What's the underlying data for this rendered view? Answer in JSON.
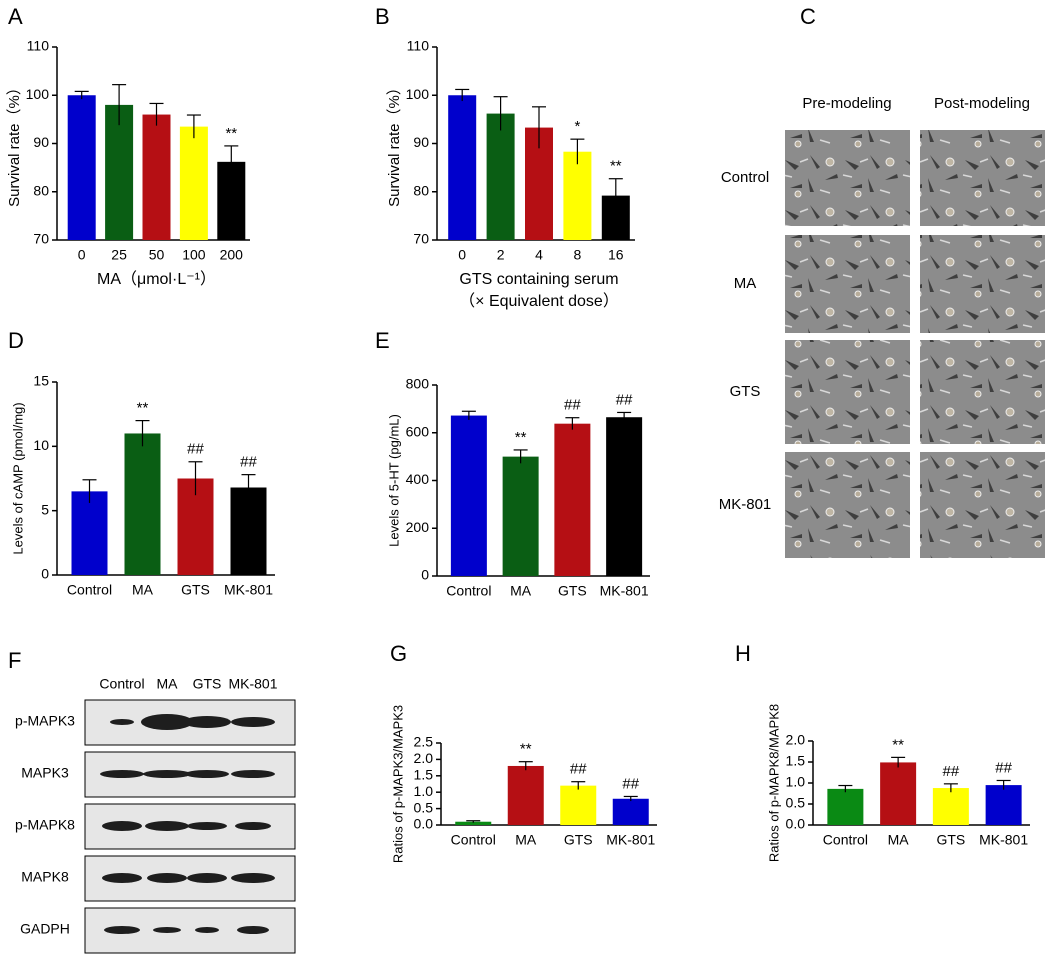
{
  "chart_data": [
    {
      "type": "bar",
      "panel_label": "A",
      "ylabel": "Survival rate（%）",
      "xlabel": [
        "MA（μmol·L⁻¹）"
      ],
      "categories": [
        "0",
        "25",
        "50",
        "100",
        "200"
      ],
      "values": [
        100,
        98,
        96,
        93.5,
        86.2
      ],
      "errors": [
        0.8,
        4.2,
        2.3,
        2.4,
        3.3
      ],
      "annotations": [
        null,
        null,
        null,
        null,
        "**"
      ],
      "colors": [
        "#0000cc",
        "#0a5e14",
        "#b50f14",
        "#ffff00",
        "#000000"
      ],
      "ylim": [
        70,
        110
      ],
      "yticks": [
        70,
        80,
        90,
        100,
        110
      ]
    },
    {
      "type": "bar",
      "panel_label": "B",
      "ylabel": "Survival rate（%）",
      "xlabel": [
        "GTS containing serum",
        "（× Equivalent dose）"
      ],
      "categories": [
        "0",
        "2",
        "4",
        "8",
        "16"
      ],
      "values": [
        100,
        96.2,
        93.3,
        88.3,
        79.2
      ],
      "errors": [
        1.2,
        3.5,
        4.3,
        2.6,
        3.5
      ],
      "annotations": [
        null,
        null,
        null,
        "*",
        "**"
      ],
      "colors": [
        "#0000cc",
        "#0a5e14",
        "#b50f14",
        "#ffff00",
        "#000000"
      ],
      "ylim": [
        70,
        110
      ],
      "yticks": [
        70,
        80,
        90,
        100,
        110
      ]
    },
    {
      "type": "bar",
      "panel_label": "D",
      "ylabel": "Levels of  cAMP (pmol/mg)",
      "categories": [
        "Control",
        "MA",
        "GTS",
        "MK-801"
      ],
      "values": [
        6.5,
        11.0,
        7.5,
        6.8
      ],
      "errors": [
        0.9,
        1.0,
        1.3,
        1.0
      ],
      "annotations": [
        null,
        "**",
        "##",
        "##"
      ],
      "colors": [
        "#0000cc",
        "#0a5e14",
        "#b50f14",
        "#000000"
      ],
      "ylim": [
        0,
        15
      ],
      "yticks": [
        0,
        5,
        10,
        15
      ]
    },
    {
      "type": "bar",
      "panel_label": "E",
      "ylabel": "Levels of  5-HT (pg/mL)",
      "categories": [
        "Control",
        "MA",
        "GTS",
        "MK-801"
      ],
      "values": [
        672,
        500,
        638,
        665
      ],
      "errors": [
        18,
        28,
        25,
        20
      ],
      "annotations": [
        null,
        "**",
        "##",
        "##"
      ],
      "colors": [
        "#0000cc",
        "#0a5e14",
        "#b50f14",
        "#000000"
      ],
      "ylim": [
        0,
        800
      ],
      "yticks": [
        0,
        200,
        400,
        600,
        800
      ]
    },
    {
      "type": "bar",
      "panel_label": "G",
      "ylabel": "Ratios of p-MAPK3/MAPK3",
      "categories": [
        "Control",
        "MA",
        "GTS",
        "MK-801"
      ],
      "values": [
        0.1,
        1.8,
        1.2,
        0.8
      ],
      "errors": [
        0.03,
        0.13,
        0.12,
        0.07
      ],
      "annotations": [
        null,
        "**",
        "##",
        "##"
      ],
      "colors": [
        "#0a8a14",
        "#b50f14",
        "#ffff00",
        "#0000cc"
      ],
      "ylim": [
        0,
        2.5
      ],
      "yticks": [
        {
          "value": 0,
          "label": "0.0"
        },
        0.5,
        {
          "value": 1,
          "label": "1.0"
        },
        1.5,
        {
          "value": 2,
          "label": "2.0"
        },
        2.5
      ]
    },
    {
      "type": "bar",
      "panel_label": "H",
      "ylabel": "Ratios of p-MAPK8/MAPK8",
      "categories": [
        "Control",
        "MA",
        "GTS",
        "MK-801"
      ],
      "values": [
        0.86,
        1.49,
        0.88,
        0.95
      ],
      "errors": [
        0.08,
        0.12,
        0.1,
        0.11
      ],
      "annotations": [
        null,
        "**",
        "##",
        "##"
      ],
      "colors": [
        "#0a8a14",
        "#b50f14",
        "#ffff00",
        "#0000cc"
      ],
      "ylim": [
        0,
        2
      ],
      "yticks": [
        {
          "value": 0,
          "label": "0.0"
        },
        0.5,
        {
          "value": 1,
          "label": "1.0"
        },
        1.5,
        {
          "value": 2,
          "label": "2.0"
        }
      ]
    }
  ],
  "micrographs": {
    "panel_label": "C",
    "columns": [
      "Pre-modeling",
      "Post-modeling"
    ],
    "rows": [
      "Control",
      "MA",
      "GTS",
      "MK-801"
    ]
  },
  "western_blot": {
    "panel_label": "F",
    "lanes": [
      "Control",
      "MA",
      "GTS",
      "MK-801"
    ],
    "rows": [
      "p-MAPK3",
      "MAPK3",
      "p-MAPK8",
      "MAPK8",
      "GADPH"
    ]
  }
}
